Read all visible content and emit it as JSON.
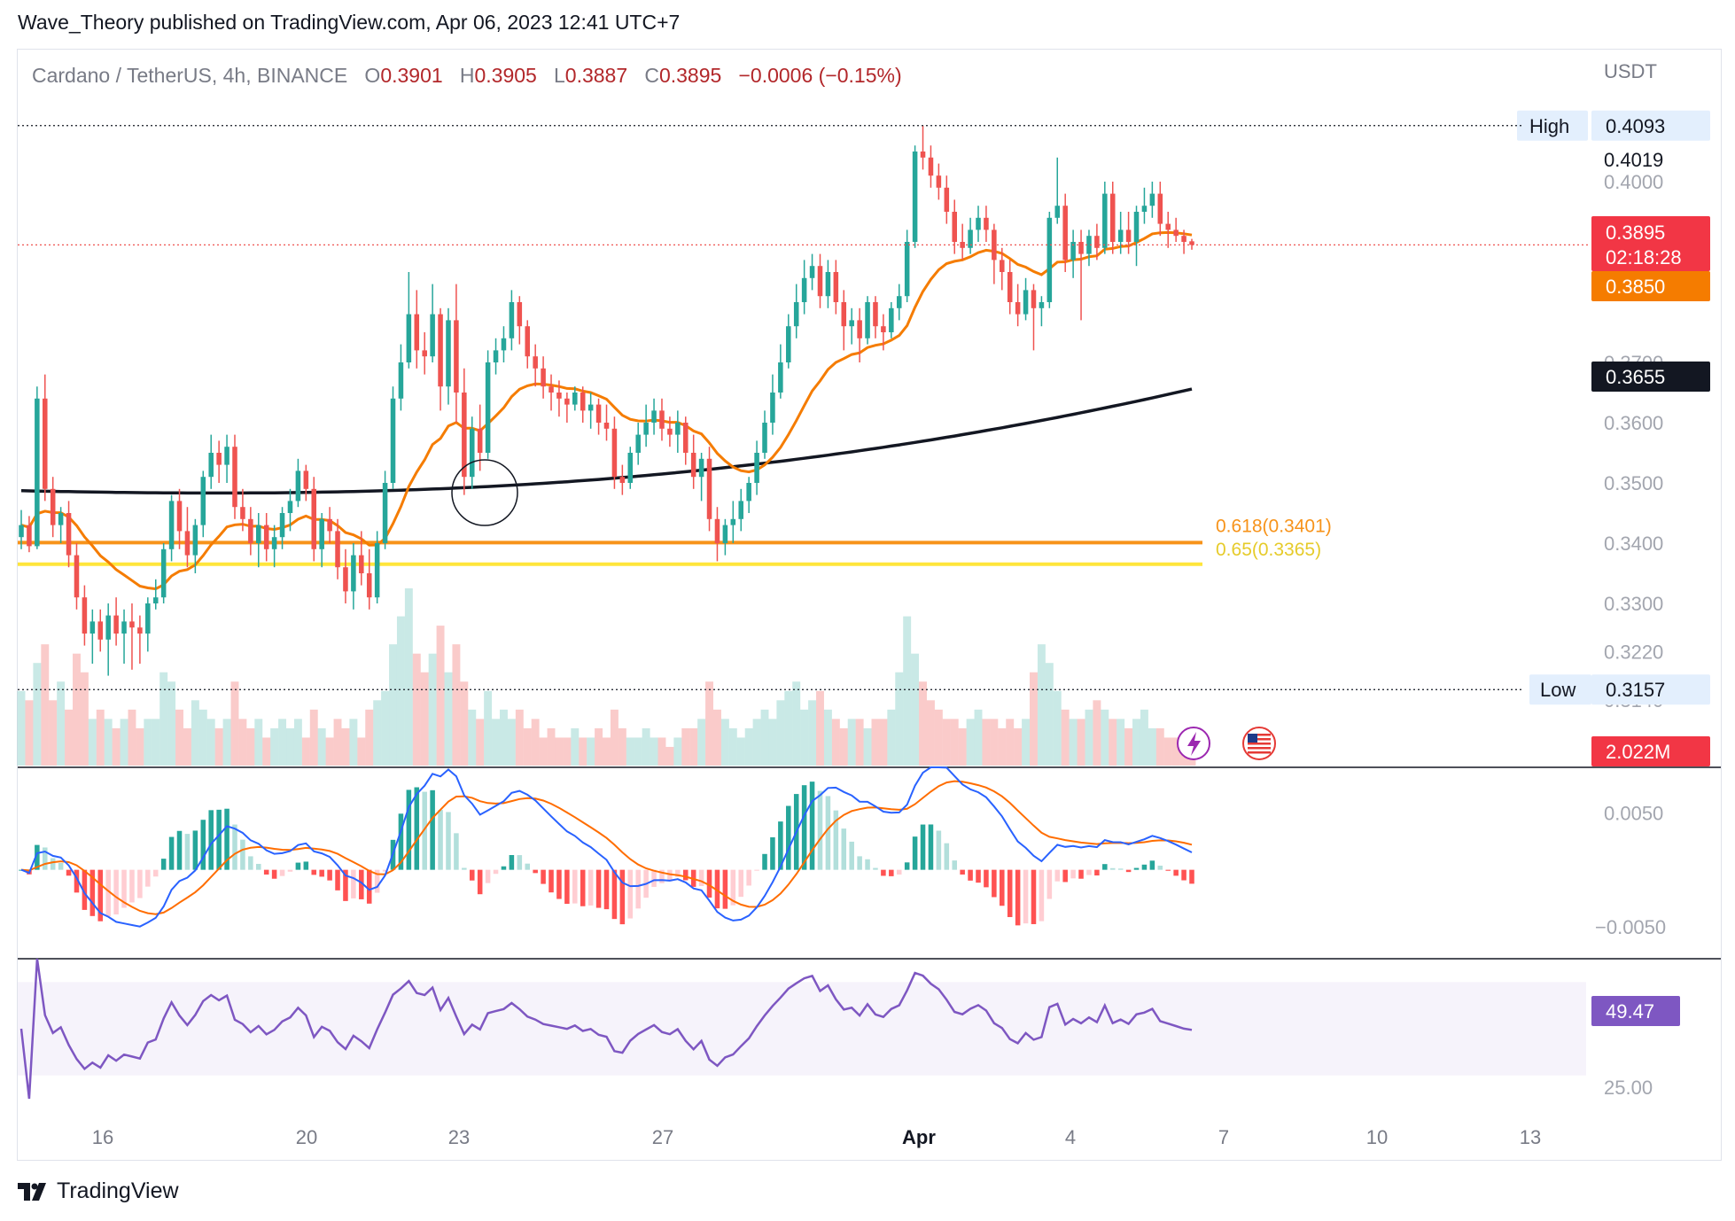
{
  "attribution": "Wave_Theory published on TradingView.com, Apr 06, 2023 12:41 UTC+7",
  "brand": {
    "name": "TradingView",
    "icon": "tradingview-logo-icon"
  },
  "legend": {
    "symbol": "Cardano / TetherUS, 4h, BINANCE",
    "open_label": "O",
    "open": "0.3901",
    "high_label": "H",
    "high": "0.3905",
    "low_label": "L",
    "low": "0.3887",
    "close_label": "C",
    "close": "0.3895",
    "change": "−0.0006 (−0.15%)"
  },
  "currency": "USDT",
  "markers": {
    "high_label": "High",
    "high_value": "0.4093",
    "low_label": "Low",
    "low_value": "0.3157"
  },
  "price_badges": {
    "last": "0.3895",
    "countdown": "02:18:28",
    "ema50": "0.3850",
    "ema200": "0.3655",
    "plain": "0.4019",
    "volume": "2.022M",
    "rsi": "49.47"
  },
  "colors": {
    "up": "#26a69a",
    "down": "#ef5350",
    "ema50": "#f57c00",
    "ema200": "#131722",
    "fib618": "#f7931a",
    "fib65": "#ffe53b",
    "macd": "#2962ff",
    "signal": "#ff6d00",
    "rsi": "#7e57c2"
  },
  "chart_data": [
    {
      "type": "candlestick",
      "title": "Cardano / TetherUS, 4h, BINANCE",
      "y_ticks": [
        "0.4000",
        "0.3700",
        "0.3600",
        "0.3500",
        "0.3400",
        "0.3300",
        "0.3220",
        "0.3140"
      ],
      "y_range": [
        0.3125,
        0.4125
      ],
      "x_ticks": [
        "16",
        "20",
        "23",
        "27",
        "Apr",
        "4",
        "7",
        "10",
        "13"
      ],
      "fib_levels": [
        {
          "label": "0.618(0.3401)",
          "value": 0.3401
        },
        {
          "label": "0.65(0.3365)",
          "value": 0.3365
        }
      ],
      "high": 0.4093,
      "low": 0.3157,
      "last": 0.3895,
      "ema50_last": 0.385,
      "ema200_last": 0.3655,
      "candles": [
        [
          0.341,
          0.3455,
          0.339,
          0.343
        ],
        [
          0.343,
          0.3445,
          0.3385,
          0.3395
        ],
        [
          0.3395,
          0.366,
          0.339,
          0.364
        ],
        [
          0.364,
          0.368,
          0.347,
          0.349
        ],
        [
          0.349,
          0.351,
          0.341,
          0.343
        ],
        [
          0.343,
          0.346,
          0.34,
          0.345
        ],
        [
          0.345,
          0.347,
          0.336,
          0.338
        ],
        [
          0.338,
          0.34,
          0.329,
          0.331
        ],
        [
          0.331,
          0.333,
          0.323,
          0.325
        ],
        [
          0.325,
          0.329,
          0.32,
          0.327
        ],
        [
          0.327,
          0.329,
          0.322,
          0.324
        ],
        [
          0.324,
          0.33,
          0.318,
          0.328
        ],
        [
          0.328,
          0.331,
          0.323,
          0.325
        ],
        [
          0.325,
          0.329,
          0.32,
          0.327
        ],
        [
          0.327,
          0.33,
          0.319,
          0.326
        ],
        [
          0.326,
          0.328,
          0.32,
          0.325
        ],
        [
          0.325,
          0.331,
          0.322,
          0.33
        ],
        [
          0.33,
          0.334,
          0.329,
          0.331
        ],
        [
          0.331,
          0.34,
          0.33,
          0.339
        ],
        [
          0.339,
          0.348,
          0.337,
          0.347
        ],
        [
          0.347,
          0.349,
          0.339,
          0.342
        ],
        [
          0.342,
          0.346,
          0.336,
          0.338
        ],
        [
          0.338,
          0.344,
          0.335,
          0.343
        ],
        [
          0.343,
          0.352,
          0.341,
          0.351
        ],
        [
          0.351,
          0.358,
          0.349,
          0.355
        ],
        [
          0.355,
          0.357,
          0.35,
          0.353
        ],
        [
          0.353,
          0.358,
          0.35,
          0.356
        ],
        [
          0.356,
          0.358,
          0.344,
          0.346
        ],
        [
          0.346,
          0.349,
          0.342,
          0.344
        ],
        [
          0.344,
          0.346,
          0.338,
          0.34
        ],
        [
          0.34,
          0.345,
          0.336,
          0.343
        ],
        [
          0.343,
          0.345,
          0.337,
          0.339
        ],
        [
          0.339,
          0.343,
          0.336,
          0.341
        ],
        [
          0.341,
          0.346,
          0.339,
          0.345
        ],
        [
          0.345,
          0.349,
          0.342,
          0.347
        ],
        [
          0.347,
          0.354,
          0.346,
          0.352
        ],
        [
          0.352,
          0.353,
          0.347,
          0.349
        ],
        [
          0.349,
          0.351,
          0.337,
          0.339
        ],
        [
          0.339,
          0.345,
          0.336,
          0.344
        ],
        [
          0.344,
          0.346,
          0.34,
          0.342
        ],
        [
          0.342,
          0.344,
          0.334,
          0.336
        ],
        [
          0.336,
          0.339,
          0.33,
          0.332
        ],
        [
          0.332,
          0.34,
          0.329,
          0.338
        ],
        [
          0.338,
          0.342,
          0.333,
          0.335
        ],
        [
          0.335,
          0.339,
          0.329,
          0.331
        ],
        [
          0.331,
          0.342,
          0.33,
          0.34
        ],
        [
          0.34,
          0.352,
          0.339,
          0.35
        ],
        [
          0.35,
          0.366,
          0.349,
          0.364
        ],
        [
          0.364,
          0.373,
          0.362,
          0.37
        ],
        [
          0.37,
          0.385,
          0.369,
          0.378
        ],
        [
          0.378,
          0.382,
          0.369,
          0.372
        ],
        [
          0.372,
          0.375,
          0.368,
          0.371
        ],
        [
          0.371,
          0.383,
          0.37,
          0.378
        ],
        [
          0.378,
          0.379,
          0.362,
          0.366
        ],
        [
          0.366,
          0.379,
          0.363,
          0.377
        ],
        [
          0.377,
          0.383,
          0.36,
          0.365
        ],
        [
          0.365,
          0.369,
          0.348,
          0.351
        ],
        [
          0.351,
          0.361,
          0.349,
          0.359
        ],
        [
          0.359,
          0.363,
          0.352,
          0.355
        ],
        [
          0.355,
          0.372,
          0.354,
          0.37
        ],
        [
          0.37,
          0.374,
          0.368,
          0.372
        ],
        [
          0.372,
          0.376,
          0.37,
          0.374
        ],
        [
          0.374,
          0.382,
          0.372,
          0.38
        ],
        [
          0.38,
          0.381,
          0.373,
          0.376
        ],
        [
          0.376,
          0.377,
          0.369,
          0.371
        ],
        [
          0.371,
          0.373,
          0.366,
          0.369
        ],
        [
          0.369,
          0.371,
          0.364,
          0.366
        ],
        [
          0.366,
          0.368,
          0.362,
          0.365
        ],
        [
          0.365,
          0.367,
          0.361,
          0.364
        ],
        [
          0.364,
          0.365,
          0.36,
          0.363
        ],
        [
          0.363,
          0.366,
          0.362,
          0.365
        ],
        [
          0.365,
          0.366,
          0.36,
          0.362
        ],
        [
          0.362,
          0.365,
          0.359,
          0.363
        ],
        [
          0.363,
          0.364,
          0.358,
          0.36
        ],
        [
          0.36,
          0.363,
          0.357,
          0.359
        ],
        [
          0.359,
          0.361,
          0.349,
          0.351
        ],
        [
          0.351,
          0.353,
          0.348,
          0.35
        ],
        [
          0.35,
          0.356,
          0.349,
          0.355
        ],
        [
          0.355,
          0.36,
          0.353,
          0.358
        ],
        [
          0.358,
          0.363,
          0.356,
          0.36
        ],
        [
          0.36,
          0.364,
          0.358,
          0.362
        ],
        [
          0.362,
          0.364,
          0.357,
          0.359
        ],
        [
          0.359,
          0.361,
          0.356,
          0.358
        ],
        [
          0.358,
          0.362,
          0.355,
          0.36
        ],
        [
          0.36,
          0.361,
          0.353,
          0.355
        ],
        [
          0.355,
          0.358,
          0.349,
          0.351
        ],
        [
          0.351,
          0.355,
          0.347,
          0.354
        ],
        [
          0.354,
          0.356,
          0.342,
          0.344
        ],
        [
          0.344,
          0.346,
          0.337,
          0.34
        ],
        [
          0.34,
          0.344,
          0.338,
          0.343
        ],
        [
          0.343,
          0.347,
          0.34,
          0.344
        ],
        [
          0.344,
          0.349,
          0.342,
          0.347
        ],
        [
          0.347,
          0.351,
          0.345,
          0.35
        ],
        [
          0.35,
          0.357,
          0.348,
          0.355
        ],
        [
          0.355,
          0.362,
          0.354,
          0.36
        ],
        [
          0.36,
          0.368,
          0.358,
          0.365
        ],
        [
          0.365,
          0.373,
          0.364,
          0.37
        ],
        [
          0.37,
          0.378,
          0.369,
          0.376
        ],
        [
          0.376,
          0.383,
          0.374,
          0.38
        ],
        [
          0.38,
          0.387,
          0.378,
          0.384
        ],
        [
          0.384,
          0.388,
          0.382,
          0.386
        ],
        [
          0.386,
          0.388,
          0.379,
          0.381
        ],
        [
          0.381,
          0.387,
          0.379,
          0.385
        ],
        [
          0.385,
          0.387,
          0.378,
          0.38
        ],
        [
          0.38,
          0.382,
          0.372,
          0.376
        ],
        [
          0.376,
          0.379,
          0.373,
          0.377
        ],
        [
          0.377,
          0.379,
          0.37,
          0.374
        ],
        [
          0.374,
          0.381,
          0.373,
          0.38
        ],
        [
          0.38,
          0.381,
          0.374,
          0.376
        ],
        [
          0.376,
          0.378,
          0.372,
          0.375
        ],
        [
          0.375,
          0.38,
          0.374,
          0.379
        ],
        [
          0.379,
          0.383,
          0.377,
          0.381
        ],
        [
          0.381,
          0.392,
          0.38,
          0.39
        ],
        [
          0.39,
          0.406,
          0.389,
          0.405
        ],
        [
          0.405,
          0.4093,
          0.402,
          0.404
        ],
        [
          0.404,
          0.406,
          0.399,
          0.401
        ],
        [
          0.401,
          0.403,
          0.397,
          0.399
        ],
        [
          0.399,
          0.401,
          0.393,
          0.395
        ],
        [
          0.395,
          0.397,
          0.388,
          0.39
        ],
        [
          0.39,
          0.393,
          0.387,
          0.389
        ],
        [
          0.389,
          0.394,
          0.388,
          0.392
        ],
        [
          0.392,
          0.396,
          0.39,
          0.394
        ],
        [
          0.394,
          0.396,
          0.39,
          0.392
        ],
        [
          0.392,
          0.393,
          0.383,
          0.387
        ],
        [
          0.387,
          0.389,
          0.382,
          0.385
        ],
        [
          0.385,
          0.387,
          0.378,
          0.38
        ],
        [
          0.38,
          0.383,
          0.376,
          0.378
        ],
        [
          0.378,
          0.384,
          0.377,
          0.382
        ],
        [
          0.382,
          0.383,
          0.372,
          0.379
        ],
        [
          0.379,
          0.381,
          0.376,
          0.38
        ],
        [
          0.38,
          0.395,
          0.379,
          0.394
        ],
        [
          0.394,
          0.404,
          0.393,
          0.396
        ],
        [
          0.396,
          0.398,
          0.385,
          0.387
        ],
        [
          0.387,
          0.392,
          0.384,
          0.39
        ],
        [
          0.39,
          0.392,
          0.377,
          0.388
        ],
        [
          0.388,
          0.392,
          0.386,
          0.391
        ],
        [
          0.391,
          0.393,
          0.387,
          0.389
        ],
        [
          0.389,
          0.4,
          0.388,
          0.398
        ],
        [
          0.398,
          0.4,
          0.388,
          0.39
        ],
        [
          0.39,
          0.395,
          0.388,
          0.392
        ],
        [
          0.392,
          0.395,
          0.388,
          0.39
        ],
        [
          0.39,
          0.396,
          0.386,
          0.395
        ],
        [
          0.395,
          0.399,
          0.393,
          0.396
        ],
        [
          0.396,
          0.4,
          0.394,
          0.398
        ],
        [
          0.398,
          0.4,
          0.391,
          0.393
        ],
        [
          0.393,
          0.395,
          0.389,
          0.392
        ],
        [
          0.392,
          0.394,
          0.39,
          0.391
        ],
        [
          0.391,
          0.392,
          0.388,
          0.39
        ],
        [
          0.3901,
          0.3905,
          0.3887,
          0.3895
        ]
      ]
    },
    {
      "type": "bar",
      "title": "Volume",
      "last": "2.022M",
      "values": [
        0.8,
        0.7,
        1.1,
        1.3,
        0.7,
        0.9,
        0.6,
        1.2,
        1.0,
        0.5,
        0.6,
        0.5,
        0.4,
        0.5,
        0.6,
        0.4,
        0.5,
        0.5,
        1.0,
        0.9,
        0.6,
        0.4,
        0.7,
        0.6,
        0.5,
        0.4,
        0.5,
        0.9,
        0.5,
        0.4,
        0.5,
        0.3,
        0.4,
        0.5,
        0.4,
        0.5,
        0.3,
        0.6,
        0.4,
        0.3,
        0.5,
        0.4,
        0.5,
        0.3,
        0.6,
        0.7,
        0.8,
        1.3,
        1.6,
        1.9,
        1.2,
        1.0,
        1.2,
        1.5,
        1.0,
        1.3,
        0.9,
        0.6,
        0.5,
        0.8,
        0.5,
        0.6,
        0.5,
        0.6,
        0.4,
        0.5,
        0.3,
        0.4,
        0.3,
        0.3,
        0.4,
        0.3,
        0.3,
        0.4,
        0.3,
        0.6,
        0.4,
        0.3,
        0.3,
        0.4,
        0.3,
        0.3,
        0.2,
        0.3,
        0.4,
        0.4,
        0.5,
        0.9,
        0.6,
        0.5,
        0.4,
        0.3,
        0.4,
        0.5,
        0.6,
        0.5,
        0.7,
        0.8,
        0.9,
        0.6,
        0.7,
        0.8,
        0.6,
        0.5,
        0.4,
        0.5,
        0.5,
        0.4,
        0.5,
        0.5,
        0.6,
        1.0,
        1.6,
        1.2,
        0.9,
        0.7,
        0.6,
        0.5,
        0.5,
        0.4,
        0.5,
        0.6,
        0.5,
        0.5,
        0.4,
        0.5,
        0.4,
        0.5,
        1.0,
        1.3,
        1.1,
        0.8,
        0.6,
        0.5,
        0.5,
        0.6,
        0.7,
        0.6,
        0.5,
        0.5,
        0.4,
        0.5,
        0.6,
        0.4,
        0.4,
        0.3,
        0.3,
        0.3
      ]
    },
    {
      "type": "bar",
      "title": "MACD",
      "y_ticks": [
        "0.0050",
        "−0.0050"
      ],
      "y_range": [
        -0.0075,
        0.009
      ]
    },
    {
      "type": "line",
      "title": "RSI",
      "y_ticks": [
        "25.00"
      ],
      "last": "49.47",
      "y_range": [
        20,
        80
      ]
    }
  ]
}
